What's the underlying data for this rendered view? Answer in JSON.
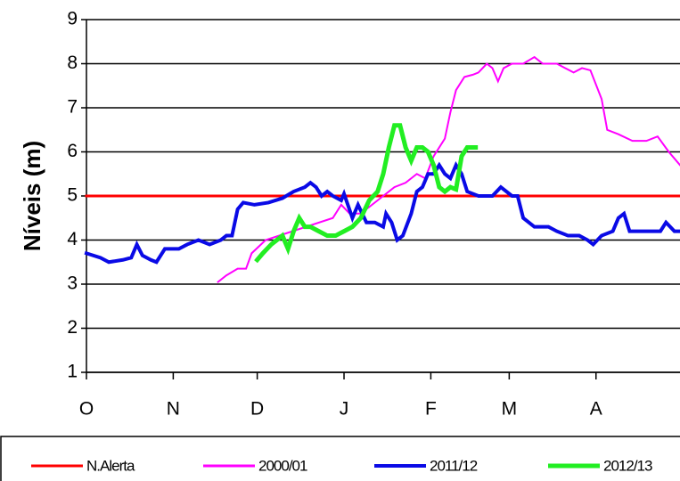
{
  "chart_data": {
    "type": "line",
    "y_label": "Níveis (m)",
    "xlim": [
      0,
      212
    ],
    "xticks": [
      {
        "value": 0,
        "label": "O"
      },
      {
        "value": 31,
        "label": "N"
      },
      {
        "value": 61,
        "label": "D"
      },
      {
        "value": 92,
        "label": "J"
      },
      {
        "value": 123,
        "label": "F"
      },
      {
        "value": 151,
        "label": "M"
      },
      {
        "value": 182,
        "label": "A"
      }
    ],
    "ylim": [
      1,
      9
    ],
    "yticks": [
      1,
      2,
      3,
      4,
      5,
      6,
      7,
      8,
      9
    ],
    "grid": true,
    "legend": "bottom",
    "series": [
      {
        "name": "N.Alerta",
        "color": "#ff0000",
        "width": 3,
        "x": [
          0,
          212
        ],
        "values": [
          5,
          5
        ]
      },
      {
        "name": "2000/01",
        "color": "#ff00ff",
        "width": 2,
        "x": [
          47,
          50,
          54,
          57,
          59,
          64,
          88,
          91,
          94,
          98,
          102,
          106,
          110,
          114,
          118,
          121,
          124,
          128,
          130,
          132,
          135,
          138,
          140,
          143,
          145,
          147,
          149,
          152,
          156,
          160,
          163,
          168,
          171,
          174,
          177,
          180,
          184,
          186,
          190,
          195,
          200,
          204,
          208,
          212
        ],
        "values": [
          3.05,
          3.2,
          3.35,
          3.35,
          3.7,
          4.0,
          4.5,
          4.8,
          4.6,
          4.6,
          4.8,
          5.0,
          5.2,
          5.3,
          5.5,
          5.4,
          5.9,
          6.3,
          6.9,
          7.4,
          7.7,
          7.75,
          7.8,
          8.0,
          7.9,
          7.6,
          7.9,
          8.0,
          8.0,
          8.15,
          8.0,
          8.0,
          7.9,
          7.8,
          7.9,
          7.85,
          7.2,
          6.5,
          6.4,
          6.25,
          6.25,
          6.35,
          6.0,
          5.7
        ]
      },
      {
        "name": "2011/12",
        "color": "#0a0ae6",
        "width": 4,
        "x": [
          0,
          5,
          8,
          13,
          16,
          18,
          20,
          23,
          25,
          28,
          33,
          36,
          40,
          44,
          48,
          50,
          52,
          54,
          56,
          60,
          65,
          70,
          74,
          78,
          80,
          82,
          84,
          86,
          88,
          91,
          92,
          95,
          97,
          100,
          103,
          106,
          107,
          109,
          111,
          113,
          116,
          118,
          120,
          122,
          124,
          126,
          128,
          130,
          132,
          134,
          136,
          140,
          145,
          148,
          152,
          154,
          156,
          160,
          165,
          168,
          172,
          176,
          179,
          181,
          184,
          188,
          190,
          192,
          194,
          200,
          205,
          207,
          210,
          212
        ],
        "values": [
          3.7,
          3.6,
          3.5,
          3.55,
          3.6,
          3.9,
          3.65,
          3.55,
          3.5,
          3.8,
          3.8,
          3.9,
          4.0,
          3.9,
          4.0,
          4.1,
          4.1,
          4.7,
          4.85,
          4.8,
          4.85,
          4.95,
          5.1,
          5.2,
          5.3,
          5.2,
          5.0,
          5.1,
          5.0,
          4.9,
          5.05,
          4.5,
          4.8,
          4.4,
          4.4,
          4.3,
          4.6,
          4.4,
          4.0,
          4.1,
          4.6,
          5.1,
          5.2,
          5.5,
          5.5,
          5.7,
          5.5,
          5.4,
          5.7,
          5.5,
          5.1,
          5.0,
          5.0,
          5.2,
          5.0,
          5.0,
          4.5,
          4.3,
          4.3,
          4.2,
          4.1,
          4.1,
          4.0,
          3.9,
          4.1,
          4.2,
          4.5,
          4.6,
          4.2,
          4.2,
          4.2,
          4.4,
          4.2,
          4.2
        ]
      },
      {
        "name": "2012/13",
        "color": "#22ee22",
        "width": 5,
        "x": [
          61,
          63,
          66,
          68,
          70,
          72,
          74,
          76,
          78,
          80,
          83,
          86,
          89,
          92,
          95,
          98,
          101,
          104,
          106,
          108,
          110,
          112,
          114,
          116,
          118,
          120,
          122,
          124,
          126,
          128,
          130,
          132,
          134,
          136,
          139
        ],
        "values": [
          3.55,
          3.7,
          3.9,
          4.0,
          4.1,
          3.8,
          4.2,
          4.5,
          4.3,
          4.3,
          4.2,
          4.1,
          4.1,
          4.2,
          4.3,
          4.5,
          4.9,
          5.1,
          5.5,
          6.1,
          6.6,
          6.6,
          6.1,
          5.8,
          6.1,
          6.1,
          6.0,
          5.7,
          5.2,
          5.1,
          5.2,
          5.15,
          5.9,
          6.1,
          6.1
        ]
      }
    ]
  }
}
